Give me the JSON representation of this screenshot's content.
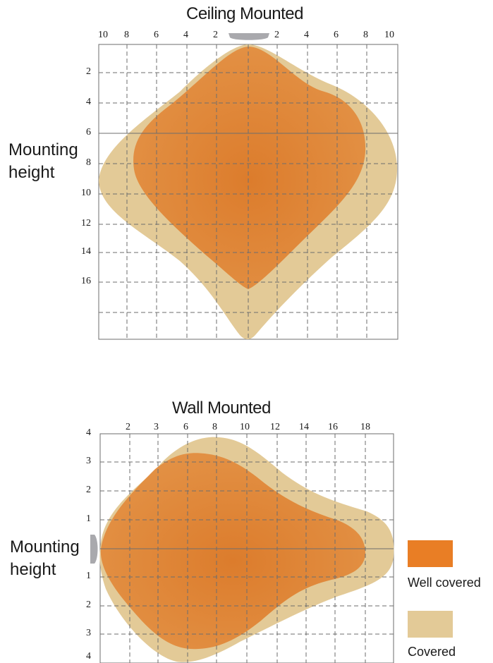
{
  "ceiling": {
    "title": "Ceiling Mounted",
    "side_label_line1": "Mounting",
    "side_label_line2": "height",
    "top_ticks": [
      "10",
      "8",
      "6",
      "4",
      "2",
      "2",
      "4",
      "6",
      "8",
      "10"
    ],
    "left_ticks": [
      "2",
      "4",
      "6",
      "8",
      "10",
      "12",
      "14",
      "16"
    ]
  },
  "wall": {
    "title": "Wall Mounted",
    "side_label_line1": "Mounting",
    "side_label_line2": "height",
    "top_ticks": [
      "2",
      "3",
      "6",
      "8",
      "10",
      "12",
      "14",
      "16",
      "18"
    ],
    "left_ticks": [
      "4",
      "3",
      "2",
      "1",
      "1",
      "2",
      "3",
      "4"
    ]
  },
  "legend": {
    "items": [
      {
        "label": "Well covered",
        "color": "#e97e25"
      },
      {
        "label": "Covered",
        "color": "#e3ca97"
      }
    ]
  },
  "colors": {
    "well_covered": "#e08a3a",
    "covered": "#e3ca97",
    "sensor": "#a9a9ad",
    "grid": "#777777"
  }
}
